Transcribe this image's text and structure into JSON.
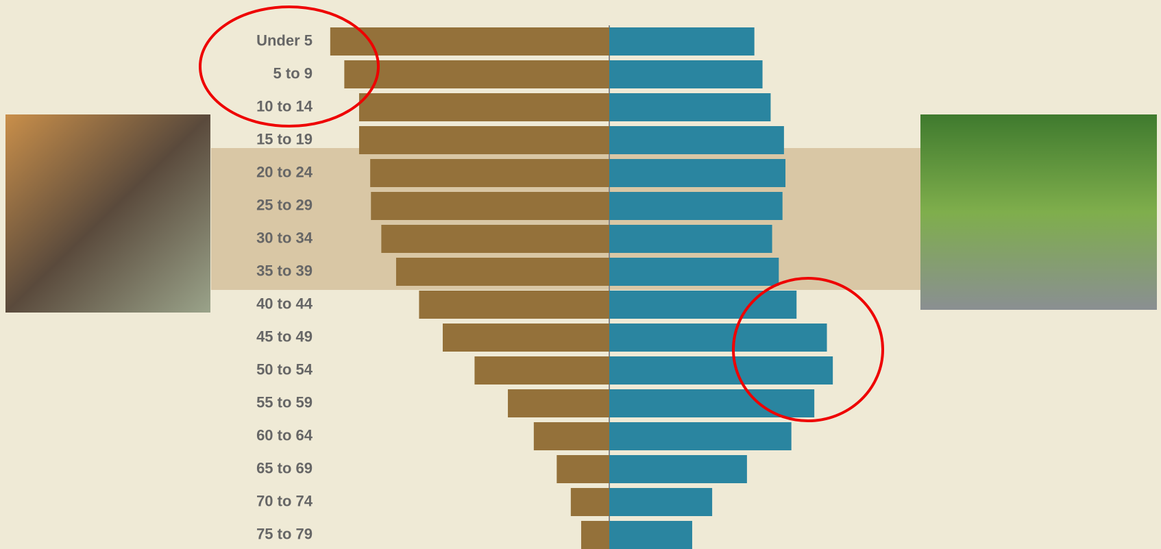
{
  "chart_data": {
    "type": "pyramid",
    "categories": [
      "Under 5",
      "5 to 9",
      "10 to 14",
      "15 to 19",
      "20 to 24",
      "25 to 29",
      "30 to 34",
      "35 to 39",
      "40 to 44",
      "45 to 49",
      "50 to 54",
      "55 to 59",
      "60 to 64",
      "65 to 69",
      "70 to 74",
      "75 to 79"
    ],
    "series": [
      {
        "color": "#94713a",
        "values": [
          377,
          358,
          338,
          338,
          323,
          322,
          308,
          288,
          257,
          225,
          182,
          137,
          102,
          71,
          52,
          38
        ]
      },
      {
        "color": "#2a85a0",
        "values": [
          196,
          207,
          218,
          236,
          238,
          234,
          220,
          229,
          253,
          294,
          302,
          277,
          246,
          186,
          139,
          112
        ]
      }
    ],
    "xlim": [
      0,
      400
    ]
  }
}
